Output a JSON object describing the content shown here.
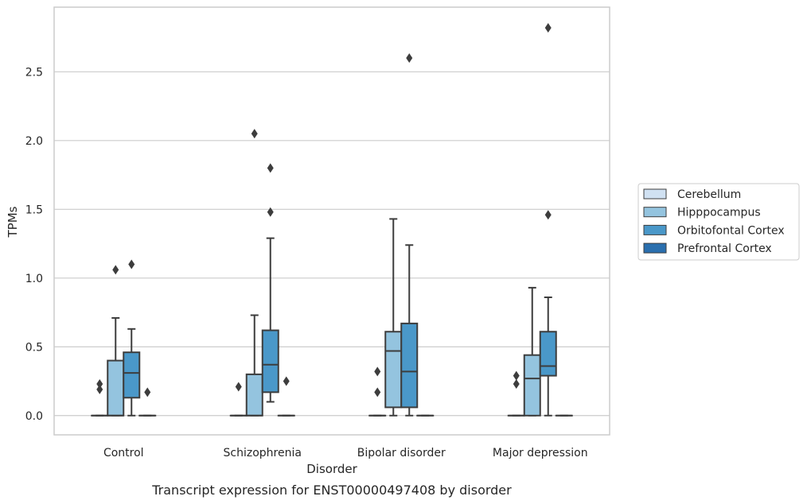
{
  "chart_data": {
    "type": "box",
    "caption": "Transcript expression for ENST00000497408 by disorder",
    "xlabel": "Disorder",
    "ylabel": "TPMs",
    "ylim": [
      -0.14,
      2.97
    ],
    "yticks": [
      "0.0",
      "0.5",
      "1.0",
      "1.5",
      "2.0",
      "2.5"
    ],
    "grid": "horizontal",
    "legend_position": "right",
    "categories": [
      "Control",
      "Schizophrenia",
      "Bipolar disorder",
      "Major depression"
    ],
    "series": [
      {
        "name": "Cerebellum",
        "color": "#d0e1f2",
        "boxes": [
          {
            "q1": 0,
            "median": 0,
            "q3": 0,
            "whisker_low": 0,
            "whisker_high": 0,
            "outliers": [
              0.19,
              0.23
            ]
          },
          {
            "q1": 0,
            "median": 0,
            "q3": 0,
            "whisker_low": 0,
            "whisker_high": 0,
            "outliers": [
              0.21
            ]
          },
          {
            "q1": 0,
            "median": 0,
            "q3": 0,
            "whisker_low": 0,
            "whisker_high": 0,
            "outliers": [
              0.17,
              0.32
            ]
          },
          {
            "q1": 0,
            "median": 0,
            "q3": 0,
            "whisker_low": 0,
            "whisker_high": 0,
            "outliers": [
              0.23,
              0.29
            ]
          }
        ]
      },
      {
        "name": "Hipppocampus",
        "color": "#94c4df",
        "boxes": [
          {
            "q1": 0,
            "median": 0,
            "q3": 0.4,
            "whisker_low": 0,
            "whisker_high": 0.71,
            "outliers": [
              1.06
            ]
          },
          {
            "q1": 0,
            "median": 0,
            "q3": 0.3,
            "whisker_low": 0,
            "whisker_high": 0.73,
            "outliers": [
              2.05
            ]
          },
          {
            "q1": 0.06,
            "median": 0.47,
            "q3": 0.61,
            "whisker_low": 0,
            "whisker_high": 1.43,
            "outliers": []
          },
          {
            "q1": 0,
            "median": 0.27,
            "q3": 0.44,
            "whisker_low": 0,
            "whisker_high": 0.93,
            "outliers": []
          }
        ]
      },
      {
        "name": "Orbitofontal Cortex",
        "color": "#4a98c9",
        "boxes": [
          {
            "q1": 0.13,
            "median": 0.31,
            "q3": 0.46,
            "whisker_low": 0,
            "whisker_high": 0.63,
            "outliers": [
              1.1
            ]
          },
          {
            "q1": 0.17,
            "median": 0.37,
            "q3": 0.62,
            "whisker_low": 0.1,
            "whisker_high": 1.29,
            "outliers": [
              1.48,
              1.8
            ]
          },
          {
            "q1": 0.06,
            "median": 0.32,
            "q3": 0.67,
            "whisker_low": 0,
            "whisker_high": 1.24,
            "outliers": [
              2.6
            ]
          },
          {
            "q1": 0.29,
            "median": 0.36,
            "q3": 0.61,
            "whisker_low": 0,
            "whisker_high": 0.86,
            "outliers": [
              1.46,
              2.82
            ]
          }
        ]
      },
      {
        "name": "Prefrontal Cortex",
        "color": "#2a6fae",
        "boxes": [
          {
            "q1": 0,
            "median": 0,
            "q3": 0,
            "whisker_low": 0,
            "whisker_high": 0,
            "outliers": [
              0.17
            ]
          },
          {
            "q1": 0,
            "median": 0,
            "q3": 0,
            "whisker_low": 0,
            "whisker_high": 0,
            "outliers": [
              0.25
            ]
          },
          {
            "q1": 0,
            "median": 0,
            "q3": 0,
            "whisker_low": 0,
            "whisker_high": 0,
            "outliers": []
          },
          {
            "q1": 0,
            "median": 0,
            "q3": 0,
            "whisker_low": 0,
            "whisker_high": 0,
            "outliers": []
          }
        ]
      }
    ]
  }
}
